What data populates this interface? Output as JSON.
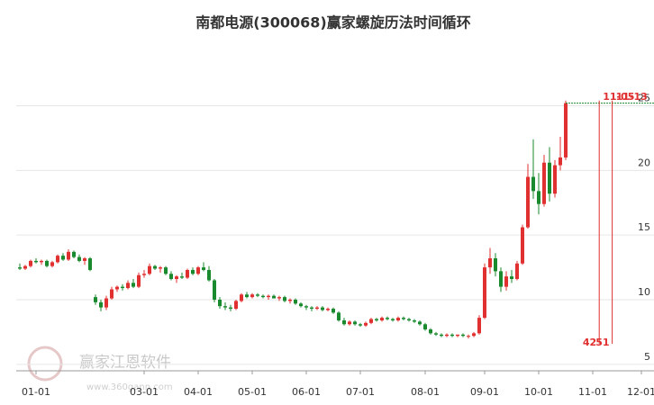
{
  "chart_data": {
    "type": "candlestick",
    "title": "南都电源(300068)赢家螺旋历法时间循环",
    "watermark": "赢家江恩软件",
    "watermark_url": "www.360gann.com",
    "categories": [
      null,
      null,
      null,
      "01-01",
      null,
      null,
      null,
      null,
      null,
      null,
      null,
      null,
      null,
      null,
      null,
      null,
      null,
      null,
      null,
      null,
      null,
      null,
      null,
      "03-01",
      null,
      null,
      null,
      null,
      null,
      null,
      null,
      null,
      null,
      "04-01",
      null,
      null,
      null,
      null,
      null,
      null,
      null,
      null,
      null,
      "05-01",
      null,
      null,
      null,
      null,
      null,
      null,
      null,
      null,
      null,
      "06-01",
      null,
      null,
      null,
      null,
      null,
      null,
      null,
      null,
      null,
      "07-01",
      null,
      null,
      null,
      null,
      null,
      null,
      null,
      null,
      null,
      null,
      null,
      "08-01",
      null,
      null,
      null,
      null,
      null,
      null,
      null,
      null,
      null,
      null,
      "09-01",
      null,
      null,
      null,
      null,
      null,
      null,
      null,
      null,
      null,
      "10-01",
      null,
      null,
      null,
      null,
      null,
      null,
      null,
      null,
      null,
      "11-01",
      null,
      null,
      null,
      null,
      null,
      null,
      null,
      null,
      "12-01"
    ],
    "open": [
      12.5,
      12.4,
      12.6,
      13.0,
      12.9,
      13.0,
      12.6,
      12.9,
      13.4,
      13.1,
      13.7,
      13.3,
      13.0,
      13.2,
      10.2,
      9.8,
      9.4,
      10.1,
      10.8,
      11.0,
      10.9,
      11.3,
      11.0,
      11.9,
      12.0,
      12.6,
      12.4,
      12.5,
      12.0,
      11.6,
      11.8,
      11.7,
      12.3,
      12.0,
      12.5,
      12.3,
      11.5,
      10.0,
      9.5,
      9.4,
      9.3,
      9.9,
      10.4,
      10.2,
      10.4,
      10.3,
      10.2,
      10.3,
      10.1,
      10.2,
      9.9,
      10.0,
      9.7,
      9.5,
      9.4,
      9.3,
      9.4,
      9.2,
      9.3,
      9.0,
      8.4,
      8.1,
      8.3,
      8.1,
      8.0,
      8.2,
      8.5,
      8.4,
      8.6,
      8.5,
      8.4,
      8.6,
      8.5,
      8.4,
      8.3,
      8.1,
      7.7,
      7.4,
      7.3,
      7.2,
      7.3,
      7.2,
      7.3,
      7.2,
      7.2,
      7.4,
      8.6,
      12.5,
      13.2,
      12.2,
      11.0,
      11.8,
      11.6,
      12.8,
      15.6,
      19.5,
      18.4,
      17.4,
      20.6,
      18.2,
      20.4,
      21.0,
      null,
      null,
      null,
      null,
      null,
      null,
      null,
      null,
      null,
      null,
      null,
      null,
      null,
      null
    ],
    "high": [
      12.8,
      12.7,
      13.1,
      13.2,
      13.1,
      13.1,
      13.0,
      13.5,
      13.6,
      13.9,
      13.8,
      13.5,
      13.3,
      13.3,
      10.4,
      10.0,
      10.3,
      11.0,
      11.1,
      11.2,
      11.5,
      11.6,
      12.1,
      12.3,
      12.8,
      12.7,
      12.6,
      12.6,
      12.2,
      11.9,
      12.1,
      12.4,
      12.5,
      12.6,
      12.9,
      12.6,
      11.6,
      10.2,
      9.8,
      9.6,
      10.0,
      10.5,
      10.6,
      10.5,
      10.5,
      10.4,
      10.4,
      10.4,
      10.3,
      10.3,
      10.1,
      10.1,
      9.8,
      9.6,
      9.5,
      9.5,
      9.5,
      9.4,
      9.4,
      9.1,
      8.6,
      8.4,
      8.4,
      8.2,
      8.3,
      8.6,
      8.6,
      8.7,
      8.7,
      8.6,
      8.7,
      8.7,
      8.6,
      8.5,
      8.4,
      8.2,
      7.8,
      7.5,
      7.4,
      7.4,
      7.4,
      7.3,
      7.4,
      7.3,
      7.5,
      8.8,
      12.8,
      14.0,
      13.6,
      12.5,
      12.2,
      12.3,
      13.0,
      15.8,
      20.5,
      22.4,
      19.8,
      21.2,
      21.8,
      20.8,
      22.6,
      25.4,
      null,
      null,
      null,
      null,
      null,
      null,
      null,
      null,
      null,
      null,
      null,
      null,
      null,
      null
    ],
    "low": [
      12.3,
      12.3,
      12.5,
      12.8,
      12.7,
      12.5,
      12.5,
      12.8,
      13.0,
      13.0,
      13.2,
      12.9,
      12.7,
      12.2,
      9.6,
      9.1,
      9.2,
      10.0,
      10.6,
      10.7,
      10.8,
      10.9,
      10.9,
      11.7,
      11.9,
      12.3,
      12.1,
      11.9,
      11.5,
      11.3,
      11.6,
      11.6,
      11.9,
      11.9,
      12.2,
      11.4,
      9.8,
      9.3,
      9.2,
      9.1,
      9.2,
      9.8,
      10.1,
      10.1,
      10.2,
      10.1,
      10.0,
      10.1,
      9.9,
      9.8,
      9.7,
      9.6,
      9.4,
      9.2,
      9.1,
      9.2,
      9.1,
      9.1,
      8.9,
      8.3,
      8.0,
      8.0,
      8.0,
      7.9,
      7.9,
      8.1,
      8.3,
      8.3,
      8.4,
      8.3,
      8.3,
      8.4,
      8.3,
      8.2,
      8.0,
      7.6,
      7.3,
      7.2,
      7.1,
      7.1,
      7.1,
      7.1,
      7.1,
      7.0,
      7.1,
      7.3,
      8.5,
      12.0,
      11.8,
      10.6,
      10.7,
      11.3,
      11.5,
      12.7,
      15.5,
      17.8,
      16.6,
      17.2,
      17.6,
      17.9,
      20.0,
      20.8,
      null,
      null,
      null,
      null,
      null,
      null,
      null,
      null,
      null,
      null,
      null,
      null,
      null,
      null
    ],
    "close": [
      12.4,
      12.6,
      13.0,
      12.9,
      13.0,
      12.6,
      12.9,
      13.4,
      13.1,
      13.7,
      13.3,
      13.0,
      13.2,
      12.3,
      9.8,
      9.4,
      10.1,
      10.8,
      11.0,
      10.9,
      11.3,
      11.0,
      11.9,
      12.0,
      12.6,
      12.4,
      12.5,
      12.0,
      11.6,
      11.8,
      11.7,
      12.3,
      12.0,
      12.5,
      12.3,
      11.5,
      10.0,
      9.5,
      9.4,
      9.3,
      9.9,
      10.4,
      10.2,
      10.4,
      10.3,
      10.2,
      10.3,
      10.1,
      10.2,
      9.9,
      10.0,
      9.7,
      9.5,
      9.4,
      9.3,
      9.4,
      9.2,
      9.3,
      9.0,
      8.4,
      8.1,
      8.3,
      8.1,
      8.0,
      8.2,
      8.5,
      8.4,
      8.6,
      8.5,
      8.4,
      8.6,
      8.5,
      8.4,
      8.3,
      8.1,
      7.7,
      7.4,
      7.3,
      7.2,
      7.3,
      7.2,
      7.3,
      7.2,
      7.2,
      7.4,
      8.6,
      12.5,
      13.2,
      12.2,
      11.0,
      11.8,
      11.6,
      12.8,
      15.6,
      19.5,
      18.4,
      17.4,
      20.6,
      18.2,
      20.4,
      21.0,
      25.2,
      null,
      null,
      null,
      null,
      null,
      null,
      null,
      null,
      null,
      null,
      null,
      null,
      null,
      null
    ],
    "up_color": "#e0302f",
    "down_color": "#1a8a2e",
    "ylim": [
      4.5,
      29.7
    ],
    "yticks": [
      5,
      10,
      15,
      20,
      25
    ],
    "grid": true,
    "cycles": [
      {
        "date": "11-05",
        "count": 42,
        "color": "#e0302f"
      },
      {
        "date": "11-13",
        "count": 51,
        "color": "#e0302f"
      }
    ]
  }
}
